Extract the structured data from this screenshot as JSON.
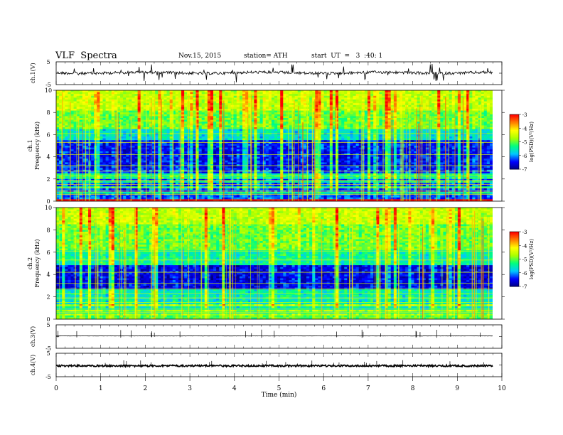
{
  "header": {
    "title": "VLF  Spectra",
    "date": "Nov.15, 2015",
    "station": "station= ATH",
    "start": "start  UT  =   3  :40: 1"
  },
  "chart_data": [
    {
      "type": "line",
      "panel": "ch1-waveform",
      "ylabel": "ch.1(V)",
      "ytick_labels": [
        "5",
        "-5"
      ],
      "ylim": [
        -5,
        5
      ],
      "xlim": [
        0,
        10
      ],
      "baseline_approx_V": 0.2,
      "color": "#000000"
    },
    {
      "type": "heatmap",
      "panel": "ch1-spectrogram",
      "ylabel": "Frequency  (kHz)",
      "channel_label": "ch.1",
      "ytick_labels": [
        "0",
        "2",
        "4",
        "6",
        "8",
        "10"
      ],
      "ylim": [
        0,
        10
      ],
      "xlim": [
        0,
        9.8
      ],
      "colorbar": {
        "label": "log(PSD)(V²/Hz)",
        "tick_labels": [
          "-3",
          "-4",
          "-5",
          "-6",
          "-7"
        ],
        "range": [
          -7,
          -3
        ]
      }
    },
    {
      "type": "heatmap",
      "panel": "ch2-spectrogram",
      "ylabel": "Frequency  (kHz)",
      "channel_label": "ch.2",
      "ytick_labels": [
        "0",
        "2",
        "4",
        "6",
        "8",
        "10"
      ],
      "ylim": [
        0,
        10
      ],
      "xlim": [
        0,
        9.8
      ],
      "colorbar": {
        "label": "log(PSD)(V²/Hz)",
        "tick_labels": [
          "-3",
          "-4",
          "-5",
          "-6",
          "-7"
        ],
        "range": [
          -7,
          -3
        ]
      }
    },
    {
      "type": "line",
      "panel": "ch3-waveform",
      "ylabel": "ch.3(V)",
      "ytick_labels": [
        "5",
        "-5"
      ],
      "ylim": [
        -5,
        5
      ],
      "xlim": [
        0,
        10
      ],
      "baseline_approx_V": 0.3,
      "color": "#000000"
    },
    {
      "type": "line",
      "panel": "ch4-waveform",
      "ylabel": "ch.4(V)",
      "ytick_labels": [
        "5",
        "-5"
      ],
      "ylim": [
        -5,
        5
      ],
      "xlim": [
        0,
        10
      ],
      "baseline_approx_V": -0.4,
      "color": "#000000"
    }
  ],
  "xaxis": {
    "label": "Time  (min)",
    "tick_labels": [
      "0",
      "1",
      "2",
      "3",
      "4",
      "5",
      "6",
      "7",
      "8",
      "9",
      "10"
    ],
    "range": [
      0,
      10
    ]
  },
  "colormap": [
    "#000000",
    "#00007f",
    "#0000ff",
    "#00c8ff",
    "#00ff7f",
    "#aaff00",
    "#ffff00",
    "#ff8000",
    "#ff0000",
    "#ffffff"
  ]
}
